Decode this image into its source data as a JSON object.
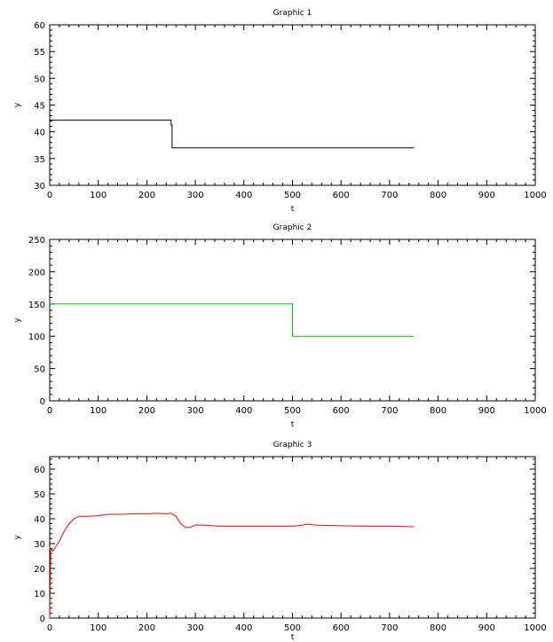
{
  "chart_data": [
    {
      "type": "line",
      "title": "Graphic 1",
      "xlabel": "t",
      "ylabel": "y",
      "xlim": [
        0,
        1000
      ],
      "ylim": [
        30,
        60
      ],
      "xticks": [
        0,
        100,
        200,
        300,
        400,
        500,
        600,
        700,
        800,
        900,
        1000
      ],
      "yticks": [
        30,
        35,
        40,
        45,
        50,
        55,
        60
      ],
      "grid": false,
      "series": [
        {
          "color": "#000000",
          "x": [
            0,
            250,
            250,
            252,
            252,
            750
          ],
          "y": [
            42.2,
            42.2,
            41.3,
            41.3,
            37,
            37
          ]
        }
      ]
    },
    {
      "type": "line",
      "title": "Graphic 2",
      "xlabel": "t",
      "ylabel": "y",
      "xlim": [
        0,
        1000
      ],
      "ylim": [
        0,
        250
      ],
      "xticks": [
        0,
        100,
        200,
        300,
        400,
        500,
        600,
        700,
        800,
        900,
        1000
      ],
      "yticks": [
        0,
        50,
        100,
        150,
        200,
        250
      ],
      "grid": false,
      "series": [
        {
          "color": "#00cc00",
          "x": [
            0,
            500,
            500,
            750
          ],
          "y": [
            150,
            150,
            100,
            100
          ]
        }
      ]
    },
    {
      "type": "line",
      "title": "Graphic 3",
      "xlabel": "t",
      "ylabel": "y",
      "xlim": [
        0,
        1000
      ],
      "ylim": [
        0,
        65
      ],
      "xticks": [
        0,
        100,
        200,
        300,
        400,
        500,
        600,
        700,
        800,
        900,
        1000
      ],
      "yticks": [
        0,
        10,
        20,
        30,
        40,
        50,
        60
      ],
      "grid": false,
      "series": [
        {
          "color": "#ff0000",
          "x": [
            0,
            2,
            4,
            6,
            10,
            20,
            30,
            40,
            50,
            60,
            70,
            80,
            100,
            120,
            150,
            180,
            200,
            220,
            240,
            250,
            260,
            270,
            280,
            290,
            300,
            320,
            350,
            400,
            450,
            500,
            520,
            530,
            550,
            600,
            650,
            700,
            750
          ],
          "y": [
            0,
            27,
            28,
            27,
            28,
            31,
            35,
            38,
            40,
            41,
            41,
            41,
            41.2,
            41.8,
            41.8,
            42,
            42,
            42.2,
            42,
            42.2,
            41,
            38,
            36.5,
            36.5,
            37.5,
            37.4,
            37,
            37,
            37,
            37,
            37.4,
            37.8,
            37.4,
            37.2,
            37,
            37,
            36.8
          ]
        }
      ]
    }
  ]
}
